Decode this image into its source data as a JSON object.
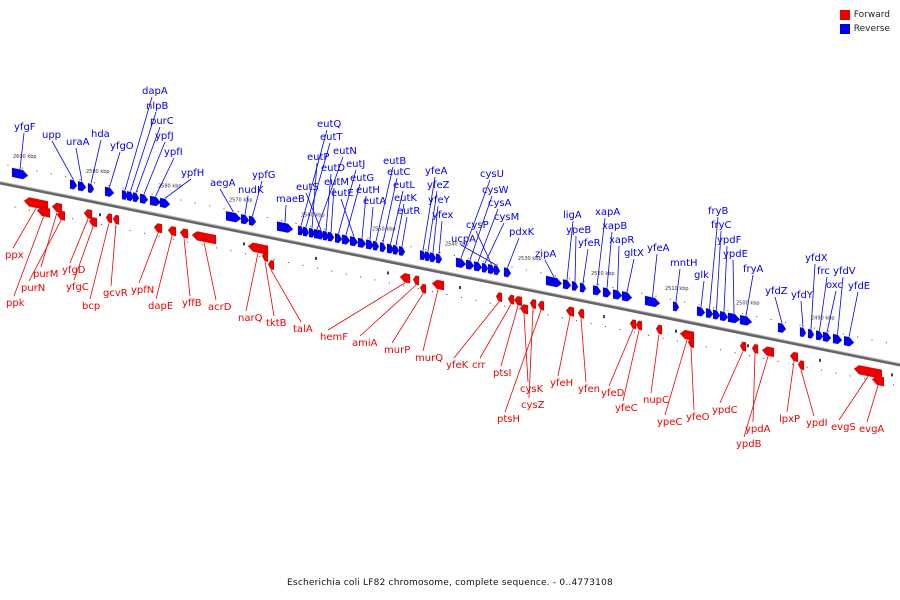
{
  "legend": {
    "items": [
      {
        "label": "Forward",
        "color": "#ee0000"
      },
      {
        "label": "Reverse",
        "color": "#0000ee"
      }
    ]
  },
  "caption": "Escherichia coli LF82 chromosome, complete sequence. - 0..4773108",
  "colors": {
    "forward": "#ee0000",
    "reverse": "#0000ee",
    "backbone": "#555555"
  },
  "kbp_ticks": [
    "2600 kbp",
    "2590 kbp",
    "2580 kbp",
    "2570 kbp",
    "2560 kbp",
    "2550 kbp",
    "2540 kbp",
    "2530 kbp",
    "2520 kbp",
    "2510 kbp",
    "2500 kbp",
    "2490 kbp"
  ],
  "reverse_genes": [
    "yfgF",
    "upp",
    "uraA",
    "hda",
    "yfgO",
    "dapA",
    "nlpB",
    "purC",
    "ypfJ",
    "ypfI",
    "ypfH",
    "aegA",
    "nudK",
    "ypfG",
    "maeB",
    "eutQ",
    "eutT",
    "eutP",
    "eutN",
    "eutS",
    "eutD",
    "eutM",
    "eutJ",
    "eutG",
    "eutE",
    "eutH",
    "eutA",
    "eutB",
    "eutC",
    "eutL",
    "eutK",
    "eutR",
    "yfeA",
    "yfeZ",
    "yfeY",
    "yfex",
    "cysU",
    "cysW",
    "cysA",
    "cysM",
    "cysP",
    "ucpA",
    "pdxK",
    "zipA",
    "ligA",
    "ypeB",
    "yfeR",
    "xapA",
    "xapB",
    "xapR",
    "gltX",
    "yfeA",
    "mntH",
    "glk",
    "fryB",
    "fryC",
    "ypdF",
    "ypdE",
    "fryA",
    "yfdZ",
    "yfdY",
    "yfdX",
    "frc",
    "oxc",
    "yfdV",
    "yfdE"
  ],
  "forward_genes": [
    "ppx",
    "ppk",
    "purM",
    "purN",
    "yfgD",
    "yfgC",
    "bcp",
    "gcvR",
    "ypfN",
    "dapE",
    "yffB",
    "acrD",
    "narQ",
    "tktB",
    "talA",
    "hemF",
    "amiA",
    "murP",
    "murQ",
    "yfeK",
    "crr",
    "ptsI",
    "cysK",
    "cysZ",
    "ptsH",
    "yfeH",
    "yfen",
    "yfeD",
    "yfeC",
    "nupC",
    "ypeC",
    "yfeO",
    "ypdC",
    "ypdA",
    "ypdB",
    "lpxP",
    "ypdI",
    "evgS",
    "evgA"
  ]
}
